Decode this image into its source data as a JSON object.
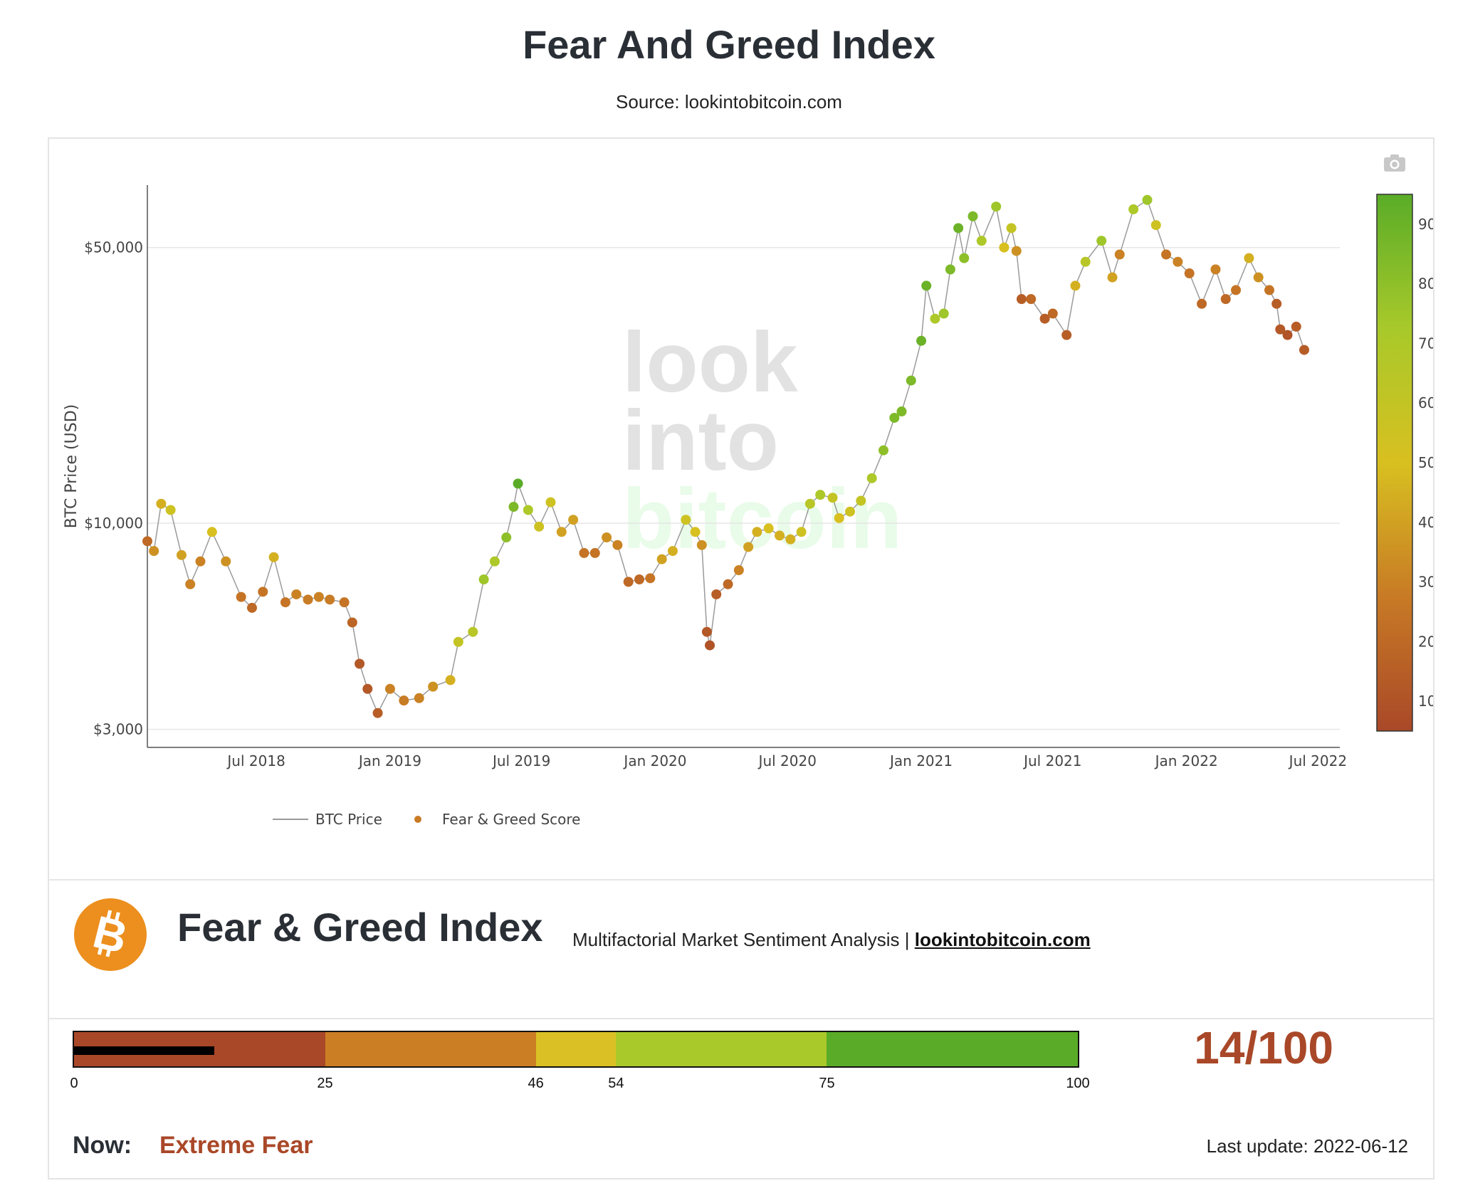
{
  "page": {
    "title": "Fear And Greed Index",
    "source": "Source: lookintobitcoin.com"
  },
  "chart_data": {
    "type": "scatter",
    "title": "",
    "ylabel": "BTC Price (USD)",
    "xlabel": "",
    "y_scale": "log",
    "ylim": [
      2700,
      72000
    ],
    "xlim": [
      "2018-02-01",
      "2022-07-31"
    ],
    "y_ticks": [
      {
        "value": 3000,
        "label": "$3,000"
      },
      {
        "value": 10000,
        "label": "$10,000"
      },
      {
        "value": 50000,
        "label": "$50,000"
      }
    ],
    "x_ticks": [
      {
        "date": "2018-07-01",
        "label": "Jul 2018"
      },
      {
        "date": "2019-01-01",
        "label": "Jan 2019"
      },
      {
        "date": "2019-07-01",
        "label": "Jul 2019"
      },
      {
        "date": "2020-01-01",
        "label": "Jan 2020"
      },
      {
        "date": "2020-07-01",
        "label": "Jul 2020"
      },
      {
        "date": "2021-01-01",
        "label": "Jan 2021"
      },
      {
        "date": "2021-07-01",
        "label": "Jul 2021"
      },
      {
        "date": "2022-01-01",
        "label": "Jan 2022"
      },
      {
        "date": "2022-07-01",
        "label": "Jul 2022"
      }
    ],
    "grid": true,
    "legend": {
      "placement": "bottom-left",
      "entries": [
        "BTC Price",
        "Fear & Greed Score"
      ]
    },
    "colorbar": {
      "label": "",
      "range": [
        5,
        95
      ],
      "ticks": [
        10,
        20,
        30,
        40,
        50,
        60,
        70,
        80,
        90
      ],
      "colors": [
        "#a94828",
        "#c87a25",
        "#d8c020",
        "#a8c92a",
        "#5aac28"
      ]
    },
    "watermark": [
      "look",
      "into",
      "bitcoin"
    ],
    "series": [
      {
        "name": "BTC Price",
        "type": "line",
        "color": "#9a9a9a",
        "dates": [
          "2018-02-01",
          "2018-02-10",
          "2018-02-20",
          "2018-03-05",
          "2018-03-20",
          "2018-04-01",
          "2018-04-15",
          "2018-05-01",
          "2018-05-20",
          "2018-06-10",
          "2018-06-25",
          "2018-07-10",
          "2018-07-25",
          "2018-08-10",
          "2018-08-25",
          "2018-09-10",
          "2018-09-25",
          "2018-10-10",
          "2018-10-30",
          "2018-11-10",
          "2018-11-20",
          "2018-12-01",
          "2018-12-15",
          "2019-01-01",
          "2019-01-20",
          "2019-02-10",
          "2019-03-01",
          "2019-03-25",
          "2019-04-05",
          "2019-04-25",
          "2019-05-10",
          "2019-05-25",
          "2019-06-10",
          "2019-06-20",
          "2019-06-26",
          "2019-07-10",
          "2019-07-25",
          "2019-08-10",
          "2019-08-25",
          "2019-09-10",
          "2019-09-25",
          "2019-10-10",
          "2019-10-26",
          "2019-11-10",
          "2019-11-25",
          "2019-12-10",
          "2019-12-25",
          "2020-01-10",
          "2020-01-25",
          "2020-02-12",
          "2020-02-25",
          "2020-03-05",
          "2020-03-12",
          "2020-03-16",
          "2020-03-25",
          "2020-04-10",
          "2020-04-25",
          "2020-05-08",
          "2020-05-20",
          "2020-06-05",
          "2020-06-20",
          "2020-07-05",
          "2020-07-20",
          "2020-08-01",
          "2020-08-15",
          "2020-09-01",
          "2020-09-10",
          "2020-09-25",
          "2020-10-10",
          "2020-10-25",
          "2020-11-10",
          "2020-11-25",
          "2020-12-05",
          "2020-12-18",
          "2021-01-01",
          "2021-01-08",
          "2021-01-20",
          "2021-02-01",
          "2021-02-10",
          "2021-02-21",
          "2021-03-01",
          "2021-03-13",
          "2021-03-25",
          "2021-04-14",
          "2021-04-25",
          "2021-05-05",
          "2021-05-12",
          "2021-05-19",
          "2021-06-01",
          "2021-06-20",
          "2021-07-01",
          "2021-07-20",
          "2021-08-01",
          "2021-08-15",
          "2021-09-06",
          "2021-09-21",
          "2021-10-01",
          "2021-10-20",
          "2021-11-08",
          "2021-11-20",
          "2021-12-04",
          "2021-12-20",
          "2022-01-05",
          "2022-01-22",
          "2022-02-10",
          "2022-02-24",
          "2022-03-10",
          "2022-03-28",
          "2022-04-10",
          "2022-04-25",
          "2022-05-05",
          "2022-05-10",
          "2022-05-20",
          "2022-06-01",
          "2022-06-12"
        ],
        "values": [
          9000,
          8500,
          11200,
          10800,
          8300,
          7000,
          8000,
          9500,
          8000,
          6500,
          6100,
          6700,
          8200,
          6300,
          6600,
          6400,
          6500,
          6400,
          6300,
          5600,
          4400,
          3800,
          3300,
          3800,
          3550,
          3600,
          3850,
          4000,
          5000,
          5300,
          7200,
          8000,
          9200,
          11000,
          12600,
          10800,
          9800,
          11300,
          9500,
          10200,
          8400,
          8400,
          9200,
          8800,
          7100,
          7200,
          7250,
          8100,
          8500,
          10200,
          9500,
          8800,
          5300,
          4900,
          6600,
          7000,
          7600,
          8700,
          9500,
          9700,
          9300,
          9100,
          9500,
          11200,
          11800,
          11600,
          10300,
          10700,
          11400,
          13000,
          15300,
          18500,
          19200,
          23000,
          29000,
          40000,
          33000,
          34000,
          44000,
          56000,
          47000,
          60000,
          52000,
          63500,
          50000,
          56000,
          49000,
          37000,
          37000,
          33000,
          34000,
          30000,
          40000,
          46000,
          52000,
          42000,
          48000,
          62500,
          66000,
          57000,
          48000,
          46000,
          43000,
          36000,
          44000,
          37000,
          39000,
          47000,
          42000,
          39000,
          36000,
          31000,
          30000,
          31500,
          27500
        ],
        "scores": [
          20,
          35,
          45,
          55,
          40,
          30,
          30,
          50,
          35,
          25,
          20,
          25,
          45,
          25,
          30,
          28,
          30,
          28,
          25,
          18,
          12,
          12,
          15,
          30,
          28,
          30,
          35,
          45,
          60,
          65,
          75,
          70,
          80,
          85,
          95,
          70,
          55,
          55,
          40,
          40,
          25,
          25,
          35,
          30,
          20,
          20,
          25,
          40,
          45,
          55,
          50,
          35,
          12,
          10,
          15,
          20,
          30,
          40,
          45,
          50,
          45,
          45,
          55,
          65,
          70,
          60,
          50,
          55,
          60,
          70,
          80,
          85,
          85,
          85,
          90,
          90,
          70,
          75,
          85,
          90,
          80,
          85,
          70,
          75,
          50,
          60,
          35,
          15,
          20,
          15,
          20,
          15,
          45,
          65,
          75,
          40,
          30,
          70,
          75,
          55,
          25,
          30,
          25,
          20,
          30,
          20,
          25,
          45,
          35,
          25,
          15,
          12,
          10,
          15,
          14
        ]
      },
      {
        "name": "Fear & Greed Score",
        "type": "scatter",
        "color": "#c87a25"
      }
    ]
  },
  "card": {
    "title": "Fear & Greed Index",
    "subtitle": "Multifactorial Market Sentiment Analysis |",
    "subtitle_link": "lookintobitcoin.com",
    "logo_icon": "bitcoin-logo-icon",
    "camera_icon": "camera-icon"
  },
  "gauge": {
    "segments": [
      {
        "from": 0,
        "to": 25,
        "color": "#a94828"
      },
      {
        "from": 25,
        "to": 46,
        "color": "#cc7e25"
      },
      {
        "from": 46,
        "to": 54,
        "color": "#dbc025"
      },
      {
        "from": 54,
        "to": 75,
        "color": "#a9c92a"
      },
      {
        "from": 75,
        "to": 100,
        "color": "#5aac28"
      }
    ],
    "ticks": [
      "0",
      "25",
      "46",
      "54",
      "75",
      "100"
    ],
    "value": 14,
    "max": 100
  },
  "status": {
    "score_text": "14/100",
    "score_color": "#a94828",
    "now_label": "Now:",
    "now_value": "Extreme Fear",
    "now_color": "#a94828",
    "last_update": "Last update: 2022-06-12"
  }
}
